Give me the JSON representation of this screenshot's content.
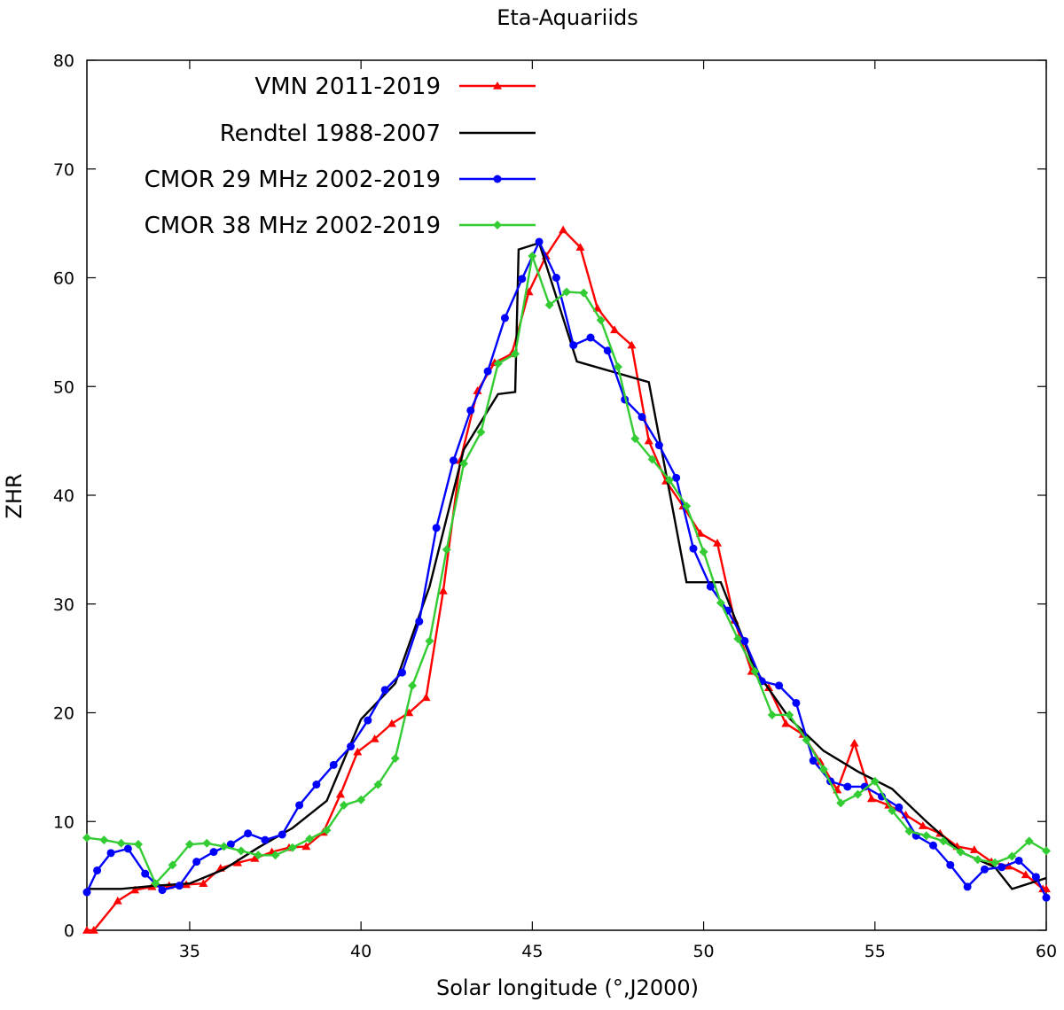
{
  "chart_data": {
    "type": "line",
    "title": "Eta-Aquariids",
    "xlabel": "Solar longitude (°,J2000)",
    "ylabel": "ZHR",
    "xlim": [
      32,
      60
    ],
    "ylim": [
      0,
      80
    ],
    "xticks": [
      35,
      40,
      45,
      50,
      55,
      60
    ],
    "yticks": [
      0,
      10,
      20,
      30,
      40,
      50,
      60,
      70,
      80
    ],
    "grid": false,
    "legend_position": "top-left",
    "series": [
      {
        "name": "VMN 2011-2019",
        "color": "#ff0000",
        "marker": "triangle",
        "x": [
          32.0,
          32.2,
          32.9,
          33.4,
          33.9,
          34.4,
          34.9,
          35.4,
          35.9,
          36.4,
          36.9,
          37.4,
          37.9,
          38.4,
          38.9,
          39.4,
          39.9,
          40.4,
          40.9,
          41.4,
          41.9,
          42.4,
          42.9,
          43.4,
          43.9,
          44.4,
          44.9,
          45.4,
          45.9,
          46.4,
          46.9,
          47.4,
          47.9,
          48.4,
          48.9,
          49.4,
          49.9,
          50.4,
          50.9,
          51.4,
          51.9,
          52.4,
          52.9,
          53.4,
          53.9,
          54.4,
          54.9,
          55.4,
          55.9,
          56.4,
          56.9,
          57.4,
          57.9,
          58.4,
          58.9,
          59.4,
          59.9,
          60.0
        ],
        "y": [
          0.0,
          0.0,
          2.7,
          3.7,
          4.0,
          4.1,
          4.2,
          4.3,
          5.7,
          6.2,
          6.6,
          7.2,
          7.6,
          7.7,
          9.0,
          12.5,
          16.4,
          17.6,
          19.0,
          20.0,
          21.4,
          31.2,
          43.2,
          49.6,
          52.2,
          53.0,
          58.7,
          62.0,
          64.4,
          62.8,
          57.2,
          55.2,
          53.8,
          45.0,
          41.3,
          39.0,
          36.5,
          35.6,
          28.5,
          23.8,
          22.3,
          19.0,
          18.0,
          15.5,
          12.9,
          17.2,
          12.1,
          11.5,
          10.6,
          9.6,
          8.9,
          7.7,
          7.4,
          6.3,
          5.9,
          5.1,
          3.8,
          3.8
        ]
      },
      {
        "name": "Rendtel 1988-2007",
        "color": "#000000",
        "marker": "none",
        "x": [
          32.0,
          33.0,
          34.0,
          35.0,
          36.0,
          37.0,
          38.0,
          39.0,
          40.0,
          41.0,
          42.0,
          43.0,
          44.0,
          44.5,
          44.6,
          45.2,
          46.3,
          48.4,
          49.5,
          50.5,
          51.5,
          52.5,
          53.5,
          54.5,
          55.5,
          56.5,
          57.5,
          58.5,
          59.0,
          60.0
        ],
        "y": [
          3.8,
          3.8,
          4.1,
          4.3,
          5.6,
          7.6,
          9.4,
          11.9,
          19.4,
          22.7,
          31.6,
          44.2,
          49.3,
          49.5,
          62.6,
          63.2,
          52.3,
          50.4,
          32.0,
          32.0,
          24.0,
          19.5,
          16.5,
          14.6,
          13.0,
          10.0,
          7.2,
          5.8,
          3.8,
          4.8
        ]
      },
      {
        "name": "CMOR 29 MHz 2002-2019",
        "color": "#0000ff",
        "marker": "circle",
        "x": [
          32.0,
          32.3,
          32.7,
          33.2,
          33.7,
          34.2,
          34.7,
          35.2,
          35.7,
          36.2,
          36.7,
          37.2,
          37.7,
          38.2,
          38.7,
          39.2,
          39.7,
          40.2,
          40.7,
          41.2,
          41.7,
          42.2,
          42.7,
          43.2,
          43.7,
          44.2,
          44.7,
          45.2,
          45.7,
          46.2,
          46.7,
          47.2,
          47.7,
          48.2,
          48.7,
          49.2,
          49.7,
          50.2,
          50.7,
          51.2,
          51.7,
          52.2,
          52.7,
          53.2,
          53.7,
          54.2,
          54.7,
          55.2,
          55.7,
          56.2,
          56.7,
          57.2,
          57.7,
          58.2,
          58.7,
          59.2,
          59.7,
          60.0
        ],
        "y": [
          3.5,
          5.5,
          7.1,
          7.5,
          5.2,
          3.7,
          4.1,
          6.3,
          7.2,
          7.9,
          8.9,
          8.3,
          8.8,
          11.5,
          13.4,
          15.2,
          16.9,
          19.3,
          22.1,
          23.7,
          28.4,
          37.0,
          43.2,
          47.8,
          51.4,
          56.3,
          59.9,
          63.3,
          60.0,
          53.8,
          54.5,
          53.3,
          48.8,
          47.2,
          44.6,
          41.6,
          35.1,
          31.6,
          29.4,
          26.6,
          22.9,
          22.5,
          20.9,
          15.6,
          13.7,
          13.2,
          13.2,
          12.3,
          11.3,
          8.7,
          7.8,
          6.0,
          4.0,
          5.6,
          5.8,
          6.4,
          4.9,
          3.0
        ]
      },
      {
        "name": "CMOR 38 MHz 2002-2019",
        "color": "#33cc33",
        "marker": "diamond",
        "x": [
          32.0,
          32.5,
          33.0,
          33.5,
          34.0,
          34.5,
          35.0,
          35.5,
          36.0,
          36.5,
          37.0,
          37.5,
          38.0,
          38.5,
          39.0,
          39.5,
          40.0,
          40.5,
          41.0,
          41.5,
          42.0,
          42.5,
          43.0,
          43.5,
          44.0,
          44.5,
          45.0,
          45.5,
          46.0,
          46.5,
          47.0,
          47.5,
          48.0,
          48.5,
          49.0,
          49.5,
          50.0,
          50.5,
          51.0,
          51.5,
          52.0,
          52.5,
          53.0,
          53.5,
          54.0,
          54.5,
          55.0,
          55.5,
          56.0,
          56.5,
          57.0,
          57.5,
          58.0,
          58.5,
          59.0,
          59.5,
          60.0
        ],
        "y": [
          8.5,
          8.3,
          8.0,
          7.9,
          4.3,
          6.0,
          7.9,
          8.0,
          7.7,
          7.3,
          6.9,
          6.9,
          7.6,
          8.4,
          9.2,
          11.5,
          12.0,
          13.4,
          15.8,
          22.5,
          26.6,
          35.0,
          42.9,
          45.8,
          52.1,
          53.0,
          62.0,
          57.5,
          58.7,
          58.6,
          56.1,
          51.8,
          45.2,
          43.3,
          41.4,
          39.0,
          34.8,
          30.1,
          26.8,
          23.8,
          19.8,
          19.8,
          17.5,
          14.8,
          11.7,
          12.5,
          13.7,
          11.0,
          9.1,
          8.7,
          8.2,
          7.2,
          6.5,
          6.2,
          6.8,
          8.2,
          7.3
        ]
      }
    ]
  }
}
